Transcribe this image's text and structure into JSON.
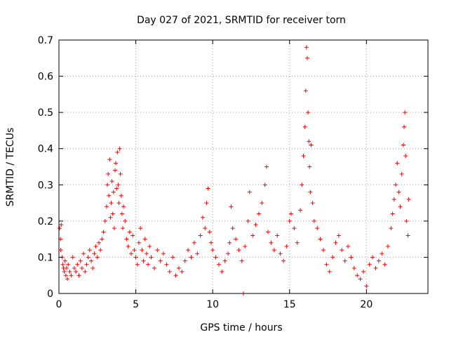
{
  "chart_data": {
    "type": "scatter",
    "title": "Day 027 of 2021, SRMTID for receiver torn",
    "xlabel": "GPS time / hours",
    "ylabel": "SRMTID / TECUs",
    "xlim": [
      0,
      24
    ],
    "ylim": [
      0,
      0.7
    ],
    "xticks": [
      0,
      5,
      10,
      15,
      20
    ],
    "xtick_labels": [
      "0",
      "5",
      "10",
      "15",
      "20"
    ],
    "yticks": [
      0,
      0.1,
      0.2,
      0.3,
      0.4,
      0.5,
      0.6,
      0.7
    ],
    "ytick_labels": [
      "0",
      "0.1",
      "0.2",
      "0.3",
      "0.4",
      "0.5",
      "0.6",
      "0.7"
    ],
    "grid": true,
    "marker": "plus",
    "color": "#ff0000",
    "series": [
      {
        "name": "SRMTID",
        "points": [
          [
            0.05,
            0.18
          ],
          [
            0.1,
            0.15
          ],
          [
            0.12,
            0.12
          ],
          [
            0.15,
            0.19
          ],
          [
            0.2,
            0.1
          ],
          [
            0.25,
            0.08
          ],
          [
            0.3,
            0.07
          ],
          [
            0.35,
            0.06
          ],
          [
            0.4,
            0.09
          ],
          [
            0.45,
            0.05
          ],
          [
            0.5,
            0.07
          ],
          [
            0.55,
            0.04
          ],
          [
            0.6,
            0.08
          ],
          [
            0.7,
            0.06
          ],
          [
            0.8,
            0.05
          ],
          [
            0.9,
            0.1
          ],
          [
            1.0,
            0.07
          ],
          [
            1.1,
            0.06
          ],
          [
            1.2,
            0.08
          ],
          [
            1.3,
            0.05
          ],
          [
            1.4,
            0.09
          ],
          [
            1.5,
            0.07
          ],
          [
            1.6,
            0.11
          ],
          [
            1.7,
            0.06
          ],
          [
            1.8,
            0.08
          ],
          [
            1.9,
            0.1
          ],
          [
            2.0,
            0.12
          ],
          [
            2.1,
            0.09
          ],
          [
            2.2,
            0.07
          ],
          [
            2.3,
            0.11
          ],
          [
            2.4,
            0.13
          ],
          [
            2.5,
            0.1
          ],
          [
            2.6,
            0.14
          ],
          [
            2.7,
            0.12
          ],
          [
            2.8,
            0.15
          ],
          [
            2.9,
            0.17
          ],
          [
            3.0,
            0.2
          ],
          [
            3.1,
            0.24
          ],
          [
            3.15,
            0.3
          ],
          [
            3.2,
            0.33
          ],
          [
            3.25,
            0.27
          ],
          [
            3.3,
            0.37
          ],
          [
            3.35,
            0.21
          ],
          [
            3.4,
            0.25
          ],
          [
            3.45,
            0.31
          ],
          [
            3.5,
            0.22
          ],
          [
            3.55,
            0.28
          ],
          [
            3.6,
            0.18
          ],
          [
            3.65,
            0.34
          ],
          [
            3.7,
            0.36
          ],
          [
            3.75,
            0.29
          ],
          [
            3.8,
            0.39
          ],
          [
            3.85,
            0.3
          ],
          [
            3.9,
            0.25
          ],
          [
            3.95,
            0.4
          ],
          [
            4.0,
            0.33
          ],
          [
            4.05,
            0.27
          ],
          [
            4.1,
            0.22
          ],
          [
            4.15,
            0.18
          ],
          [
            4.2,
            0.24
          ],
          [
            4.3,
            0.2
          ],
          [
            4.4,
            0.15
          ],
          [
            4.5,
            0.13
          ],
          [
            4.6,
            0.17
          ],
          [
            4.7,
            0.11
          ],
          [
            4.8,
            0.16
          ],
          [
            4.9,
            0.12
          ],
          [
            5.0,
            0.1
          ],
          [
            5.1,
            0.08
          ],
          [
            5.2,
            0.14
          ],
          [
            5.3,
            0.18
          ],
          [
            5.4,
            0.12
          ],
          [
            5.5,
            0.09
          ],
          [
            5.6,
            0.15
          ],
          [
            5.7,
            0.11
          ],
          [
            5.8,
            0.08
          ],
          [
            5.9,
            0.13
          ],
          [
            6.0,
            0.1
          ],
          [
            6.2,
            0.07
          ],
          [
            6.4,
            0.12
          ],
          [
            6.6,
            0.09
          ],
          [
            6.8,
            0.11
          ],
          [
            7.0,
            0.08
          ],
          [
            7.2,
            0.06
          ],
          [
            7.4,
            0.1
          ],
          [
            7.6,
            0.05
          ],
          [
            7.8,
            0.07
          ],
          [
            8.0,
            0.06
          ],
          [
            8.2,
            0.09
          ],
          [
            8.4,
            0.12
          ],
          [
            8.6,
            0.1
          ],
          [
            8.8,
            0.14
          ],
          [
            9.0,
            0.11
          ],
          [
            9.2,
            0.16
          ],
          [
            9.35,
            0.21
          ],
          [
            9.5,
            0.18
          ],
          [
            9.6,
            0.25
          ],
          [
            9.7,
            0.29
          ],
          [
            9.8,
            0.17
          ],
          [
            9.9,
            0.14
          ],
          [
            10.0,
            0.12
          ],
          [
            10.2,
            0.1
          ],
          [
            10.4,
            0.08
          ],
          [
            10.6,
            0.06
          ],
          [
            10.8,
            0.09
          ],
          [
            11.0,
            0.11
          ],
          [
            11.1,
            0.14
          ],
          [
            11.2,
            0.24
          ],
          [
            11.3,
            0.18
          ],
          [
            11.5,
            0.15
          ],
          [
            11.7,
            0.12
          ],
          [
            11.9,
            0.09
          ],
          [
            12.0,
            0.0
          ],
          [
            12.1,
            0.13
          ],
          [
            12.3,
            0.2
          ],
          [
            12.4,
            0.28
          ],
          [
            12.6,
            0.16
          ],
          [
            12.8,
            0.19
          ],
          [
            13.0,
            0.22
          ],
          [
            13.2,
            0.25
          ],
          [
            13.4,
            0.3
          ],
          [
            13.5,
            0.35
          ],
          [
            13.6,
            0.17
          ],
          [
            13.8,
            0.14
          ],
          [
            14.0,
            0.12
          ],
          [
            14.2,
            0.16
          ],
          [
            14.4,
            0.11
          ],
          [
            14.6,
            0.09
          ],
          [
            14.8,
            0.13
          ],
          [
            15.0,
            0.2
          ],
          [
            15.1,
            0.22
          ],
          [
            15.3,
            0.18
          ],
          [
            15.5,
            0.14
          ],
          [
            15.7,
            0.23
          ],
          [
            15.8,
            0.3
          ],
          [
            15.9,
            0.38
          ],
          [
            16.0,
            0.46
          ],
          [
            16.05,
            0.56
          ],
          [
            16.1,
            0.68
          ],
          [
            16.15,
            0.65
          ],
          [
            16.2,
            0.5
          ],
          [
            16.25,
            0.42
          ],
          [
            16.3,
            0.35
          ],
          [
            16.35,
            0.28
          ],
          [
            16.4,
            0.41
          ],
          [
            16.5,
            0.25
          ],
          [
            16.6,
            0.2
          ],
          [
            16.8,
            0.18
          ],
          [
            17.0,
            0.15
          ],
          [
            17.2,
            0.12
          ],
          [
            17.4,
            0.08
          ],
          [
            17.6,
            0.06
          ],
          [
            17.8,
            0.1
          ],
          [
            18.0,
            0.14
          ],
          [
            18.2,
            0.16
          ],
          [
            18.4,
            0.12
          ],
          [
            18.6,
            0.09
          ],
          [
            18.8,
            0.13
          ],
          [
            19.0,
            0.1
          ],
          [
            19.2,
            0.07
          ],
          [
            19.4,
            0.05
          ],
          [
            19.6,
            0.04
          ],
          [
            19.8,
            0.06
          ],
          [
            20.0,
            0.02
          ],
          [
            20.2,
            0.08
          ],
          [
            20.4,
            0.1
          ],
          [
            20.6,
            0.07
          ],
          [
            20.8,
            0.09
          ],
          [
            21.0,
            0.11
          ],
          [
            21.2,
            0.08
          ],
          [
            21.4,
            0.13
          ],
          [
            21.6,
            0.18
          ],
          [
            21.7,
            0.22
          ],
          [
            21.8,
            0.26
          ],
          [
            21.9,
            0.3
          ],
          [
            22.0,
            0.36
          ],
          [
            22.1,
            0.28
          ],
          [
            22.2,
            0.24
          ],
          [
            22.3,
            0.33
          ],
          [
            22.4,
            0.41
          ],
          [
            22.45,
            0.46
          ],
          [
            22.5,
            0.5
          ],
          [
            22.55,
            0.38
          ],
          [
            22.6,
            0.2
          ],
          [
            22.7,
            0.16
          ],
          [
            22.75,
            0.26
          ]
        ]
      }
    ]
  }
}
